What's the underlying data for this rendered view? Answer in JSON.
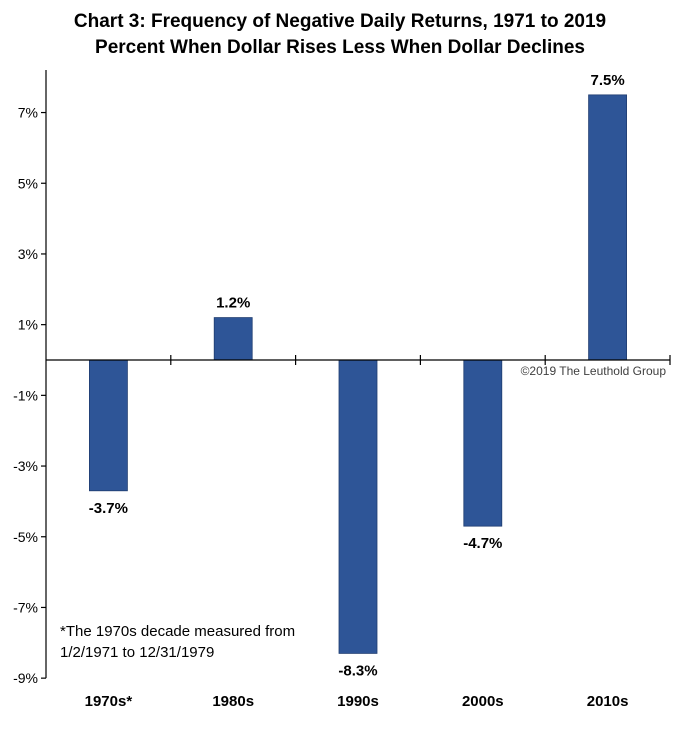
{
  "chart_data": {
    "type": "bar",
    "title": "Chart 3: Frequency of Negative Daily Returns, 1971 to 2019",
    "subtitle": "Percent When Dollar Rises Less When Dollar Declines",
    "categories": [
      "1970s*",
      "1980s",
      "1990s",
      "2000s",
      "2010s"
    ],
    "values": [
      -3.7,
      1.2,
      -8.3,
      -4.7,
      7.5
    ],
    "data_labels": [
      "-3.7%",
      "1.2%",
      "-8.3%",
      "-4.7%",
      "7.5%"
    ],
    "y_ticks": [
      7,
      5,
      3,
      1,
      -1,
      -3,
      -5,
      -7,
      -9
    ],
    "y_tick_labels": [
      "7%",
      "5%",
      "3%",
      "1%",
      "-1%",
      "-3%",
      "-5%",
      "-7%",
      "-9%"
    ],
    "ylim": [
      -9,
      8
    ],
    "xlabel": "",
    "ylabel": "",
    "grid": false,
    "bar_color": "#2E5597",
    "copyright": "©2019 The Leuthold Group",
    "footnote_line1": "*The 1970s decade measured from",
    "footnote_line2": "1/2/1971 to 12/31/1979"
  }
}
